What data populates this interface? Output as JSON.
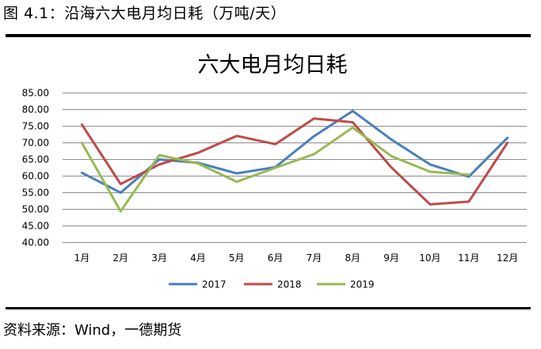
{
  "figure": {
    "caption": "图 4.1：沿海六大电月均日耗（万吨/天）",
    "source": "资料来源：Wind，一德期货"
  },
  "chart_data": {
    "type": "line",
    "title": "六大电月均日耗",
    "xlabel": "",
    "ylabel": "",
    "categories": [
      "1月",
      "2月",
      "3月",
      "4月",
      "5月",
      "6月",
      "7月",
      "8月",
      "9月",
      "10月",
      "11月",
      "12月"
    ],
    "y_tick_labels": [
      "40.00",
      "45.00",
      "50.00",
      "55.00",
      "60.00",
      "65.00",
      "70.00",
      "75.00",
      "80.00",
      "85.00"
    ],
    "ylim": [
      40,
      85
    ],
    "grid": true,
    "legend_position": "bottom",
    "series": [
      {
        "name": "2017",
        "color": "#4a7ebb",
        "values": [
          61.0,
          55.0,
          65.0,
          64.0,
          60.8,
          62.7,
          72.0,
          79.6,
          71.0,
          63.5,
          59.8,
          71.5
        ]
      },
      {
        "name": "2018",
        "color": "#be4b48",
        "values": [
          75.5,
          57.6,
          63.5,
          67.0,
          72.1,
          69.6,
          77.3,
          76.2,
          62.6,
          51.5,
          52.3,
          70.0
        ]
      },
      {
        "name": "2019",
        "color": "#98b954",
        "values": [
          70.0,
          49.4,
          66.3,
          63.8,
          58.3,
          62.5,
          66.6,
          74.6,
          66.0,
          61.3,
          60.4,
          null
        ]
      }
    ]
  }
}
